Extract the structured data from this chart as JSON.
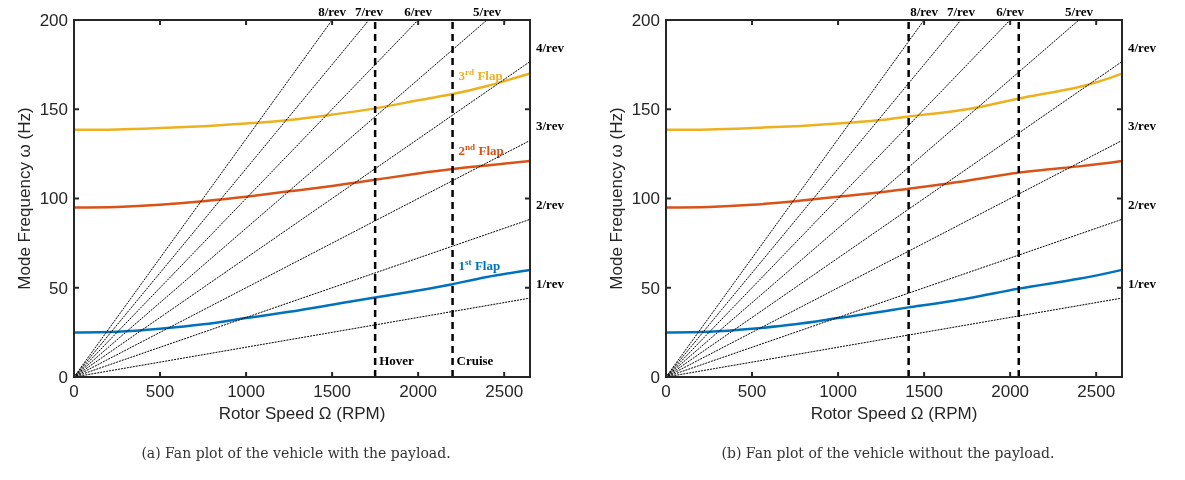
{
  "chart_data": [
    {
      "type": "line",
      "xlabel": "Rotor Speed Ω (RPM)",
      "ylabel": "Mode Frequency ω (Hz)",
      "xlim": [
        0,
        2650
      ],
      "ylim": [
        0,
        200
      ],
      "xticks": [
        0,
        500,
        1000,
        1500,
        2000,
        2500
      ],
      "yticks": [
        0,
        50,
        100,
        150,
        200
      ],
      "grid": false,
      "annotations": [
        "(a)  Fan plot of the vehicle with the payload."
      ],
      "ref_lines": [
        {
          "axis": "x",
          "value": 1750,
          "label": "Hover",
          "color": "#000000",
          "line_style": "dashed"
        },
        {
          "axis": "x",
          "value": 2200,
          "label": "Cruise",
          "color": "#000000",
          "line_style": "dashed"
        }
      ],
      "series": [
        {
          "name": "1$^{st}$ Flap",
          "color": "#0072bd",
          "x": [
            0,
            250,
            500,
            750,
            1000,
            1250,
            1500,
            1750,
            2000,
            2200,
            2400,
            2650
          ],
          "values": [
            25,
            25.3,
            27,
            29.5,
            33,
            36.5,
            40.5,
            44.5,
            48.5,
            52,
            56,
            60
          ]
        },
        {
          "name": "2$^{nd}$ Flap",
          "color": "#d95319",
          "x": [
            0,
            250,
            500,
            750,
            1000,
            1250,
            1500,
            1750,
            2000,
            2200,
            2400,
            2650
          ],
          "values": [
            95,
            95.3,
            96.5,
            98.5,
            101,
            104,
            107,
            110.5,
            114,
            116.5,
            118.5,
            121
          ]
        },
        {
          "name": "3$^{rd}$ Flap",
          "color": "#edb120",
          "x": [
            0,
            250,
            500,
            750,
            1000,
            1250,
            1500,
            1750,
            2000,
            2200,
            2400,
            2650
          ],
          "values": [
            138.5,
            138.7,
            139.5,
            140.5,
            142,
            144,
            147,
            150.5,
            155,
            158.5,
            163,
            170
          ]
        },
        {
          "name": "1/rev",
          "color": "#000000",
          "line_style": "dotted",
          "x": [
            0,
            2650
          ],
          "values": [
            0,
            44.2
          ]
        },
        {
          "name": "2/rev",
          "color": "#000000",
          "line_style": "dotted",
          "x": [
            0,
            2650
          ],
          "values": [
            0,
            88.3
          ]
        },
        {
          "name": "3/rev",
          "color": "#000000",
          "line_style": "dotted",
          "x": [
            0,
            2650
          ],
          "values": [
            0,
            132.5
          ]
        },
        {
          "name": "4/rev",
          "color": "#000000",
          "line_style": "dotted",
          "x": [
            0,
            2650
          ],
          "values": [
            0,
            176.7
          ]
        },
        {
          "name": "5/rev",
          "color": "#000000",
          "line_style": "dotted",
          "x": [
            0,
            2400
          ],
          "values": [
            0,
            200
          ]
        },
        {
          "name": "6/rev",
          "color": "#000000",
          "line_style": "dotted",
          "x": [
            0,
            2000
          ],
          "values": [
            0,
            200
          ]
        },
        {
          "name": "7/rev",
          "color": "#000000",
          "line_style": "dotted",
          "x": [
            0,
            1714
          ],
          "values": [
            0,
            200
          ]
        },
        {
          "name": "8/rev",
          "color": "#000000",
          "line_style": "dotted",
          "x": [
            0,
            1500
          ],
          "values": [
            0,
            200
          ]
        }
      ]
    },
    {
      "type": "line",
      "xlabel": "Rotor Speed Ω (RPM)",
      "ylabel": "Mode Frequency ω (Hz)",
      "xlim": [
        0,
        2650
      ],
      "ylim": [
        0,
        200
      ],
      "xticks": [
        0,
        500,
        1000,
        1500,
        2000,
        2500
      ],
      "yticks": [
        0,
        50,
        100,
        150,
        200
      ],
      "grid": false,
      "annotations": [
        "(b)  Fan plot of the vehicle without the payload."
      ],
      "ref_lines": [
        {
          "axis": "x",
          "value": 1410,
          "color": "#000000",
          "line_style": "dashed"
        },
        {
          "axis": "x",
          "value": 2050,
          "color": "#000000",
          "line_style": "dashed"
        }
      ],
      "series": [
        {
          "color": "#0072bd",
          "x": [
            0,
            250,
            500,
            750,
            1000,
            1250,
            1410,
            1750,
            2050,
            2400,
            2650
          ],
          "values": [
            25,
            25.3,
            27,
            29.5,
            33,
            36.5,
            39,
            44,
            49.5,
            55,
            60
          ]
        },
        {
          "color": "#d95319",
          "x": [
            0,
            250,
            500,
            750,
            1000,
            1250,
            1410,
            1750,
            2050,
            2400,
            2650
          ],
          "values": [
            95,
            95.3,
            96.5,
            98.5,
            101,
            103.5,
            105.5,
            110,
            114.5,
            118,
            121
          ]
        },
        {
          "color": "#edb120",
          "x": [
            0,
            250,
            500,
            750,
            1000,
            1250,
            1410,
            1750,
            2050,
            2400,
            2650
          ],
          "values": [
            138.5,
            138.7,
            139.5,
            140.5,
            142,
            144,
            146,
            150,
            156,
            162.5,
            170
          ]
        },
        {
          "name": "1/rev",
          "color": "#000000",
          "line_style": "dotted",
          "x": [
            0,
            2650
          ],
          "values": [
            0,
            44.2
          ]
        },
        {
          "name": "2/rev",
          "color": "#000000",
          "line_style": "dotted",
          "x": [
            0,
            2650
          ],
          "values": [
            0,
            88.3
          ]
        },
        {
          "name": "3/rev",
          "color": "#000000",
          "line_style": "dotted",
          "x": [
            0,
            2650
          ],
          "values": [
            0,
            132.5
          ]
        },
        {
          "name": "4/rev",
          "color": "#000000",
          "line_style": "dotted",
          "x": [
            0,
            2650
          ],
          "values": [
            0,
            176.7
          ]
        },
        {
          "name": "5/rev",
          "color": "#000000",
          "line_style": "dotted",
          "x": [
            0,
            2400
          ],
          "values": [
            0,
            200
          ]
        },
        {
          "name": "6/rev",
          "color": "#000000",
          "line_style": "dotted",
          "x": [
            0,
            2000
          ],
          "values": [
            0,
            200
          ]
        },
        {
          "name": "7/rev",
          "color": "#000000",
          "line_style": "dotted",
          "x": [
            0,
            1714
          ],
          "values": [
            0,
            200
          ]
        },
        {
          "name": "8/rev",
          "color": "#000000",
          "line_style": "dotted",
          "x": [
            0,
            1500
          ],
          "values": [
            0,
            200
          ]
        }
      ]
    }
  ]
}
